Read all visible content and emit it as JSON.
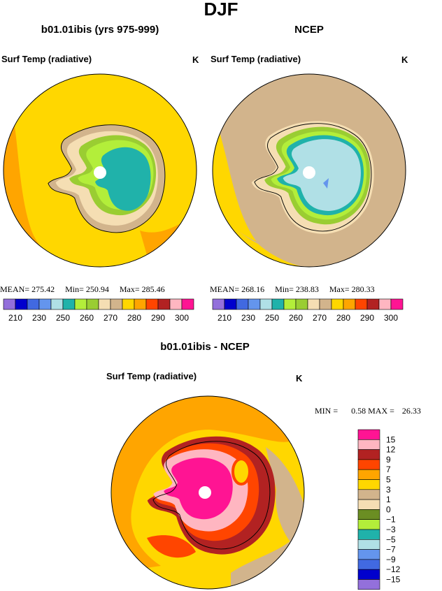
{
  "title": "DJF",
  "panels": [
    {
      "title": "b01.01ibis (yrs 975-999)",
      "variable": "Surf Temp (radiative)",
      "units": "K",
      "stats": {
        "mean_label": "MEAN=",
        "mean": 275.42,
        "min_label": "Min=",
        "min": 250.94,
        "max_label": "Max=",
        "max": 285.46
      }
    },
    {
      "title": "NCEP",
      "variable": "Surf Temp (radiative)",
      "units": "K",
      "stats": {
        "mean_label": "MEAN=",
        "mean": 268.16,
        "min_label": "Min=",
        "min": 238.83,
        "max_label": "Max=",
        "max": 280.33
      }
    }
  ],
  "colorbar": {
    "colors": [
      "#9370db",
      "#0000cd",
      "#4169e1",
      "#6495ed",
      "#b0e0e6",
      "#20b2aa",
      "#b3ee3a",
      "#9acd32",
      "#f5deb3",
      "#d2b48c",
      "#ffd700",
      "#ffa500",
      "#ff4500",
      "#b22222",
      "#ffb6c1",
      "#ff1493"
    ],
    "labels": [
      "210",
      "230",
      "250",
      "260",
      "270",
      "280",
      "290",
      "300"
    ]
  },
  "diff_panel": {
    "title": "b01.01ibis - NCEP",
    "variable": "Surf Temp (radiative)",
    "units": "K",
    "stats": {
      "min_label": "MIN =",
      "min": 0.58,
      "max_label": "MAX =",
      "max": 26.33
    },
    "colorbar": {
      "colors": [
        "#ff1493",
        "#ffb6c1",
        "#b22222",
        "#ff4500",
        "#ffa500",
        "#ffd700",
        "#d2b48c",
        "#f5deb3",
        "#6b8e23",
        "#b3ee3a",
        "#20b2aa",
        "#b0e0e6",
        "#6495ed",
        "#4169e1",
        "#0000cd",
        "#9370db"
      ],
      "labels": [
        "15",
        "12",
        "9",
        "7",
        "5",
        "3",
        "1",
        "0",
        "−1",
        "−3",
        "−5",
        "−7",
        "−9",
        "−12",
        "−15"
      ]
    }
  }
}
